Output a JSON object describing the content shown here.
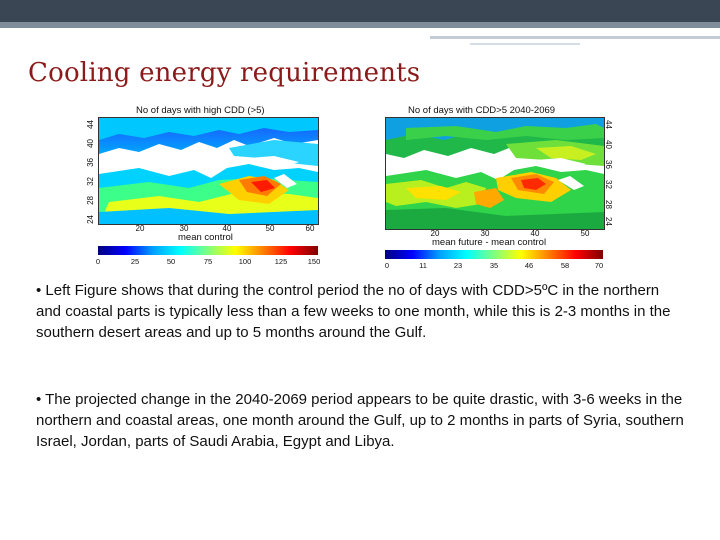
{
  "slide": {
    "title": "Cooling energy requirements"
  },
  "left_map": {
    "title": "No of days with high CDD (>5)",
    "y_ticks": [
      "44",
      "40",
      "36",
      "32",
      "28",
      "24"
    ],
    "x_ticks": [
      "20",
      "30",
      "40",
      "50",
      "60"
    ],
    "x_label": "mean control",
    "colorbar_ticks": [
      "0",
      "25",
      "50",
      "75",
      "100",
      "125",
      "150"
    ]
  },
  "right_map": {
    "title": "No of days with CDD>5  2040-2069",
    "y_ticks": [
      "44",
      "40",
      "36",
      "32",
      "28",
      "24"
    ],
    "x_ticks": [
      "20",
      "30",
      "40",
      "50"
    ],
    "x_label": "mean future - mean control",
    "colorbar_ticks": [
      "0",
      "11",
      "23",
      "35",
      "46",
      "58",
      "70"
    ]
  },
  "bullets": [
    "• Left Figure shows that during the control period the no of days with CDD>5ºC in the northern and coastal parts is typically less than a few weeks to one month, while this is 2-3 months in the southern desert areas and up to 5 months around the Gulf.",
    "• The projected change in the 2040-2069 period appears to be quite drastic, with 3-6 weeks in the northern and coastal areas, one month around the Gulf, up to 2 months in parts of Syria, southern Israel, Jordan, parts of Saudi Arabia, Egypt and Libya."
  ],
  "colors": {
    "title": "#8b1a1a",
    "top_bar": "#3a4654",
    "top_bar_accent": "#7f8c99",
    "sea": "#ffffff",
    "jet_scale": [
      "#00007f",
      "#0000ff",
      "#00a0ff",
      "#00ffff",
      "#7fff7f",
      "#ffff00",
      "#ff8000",
      "#ff0000",
      "#7f0000"
    ]
  }
}
